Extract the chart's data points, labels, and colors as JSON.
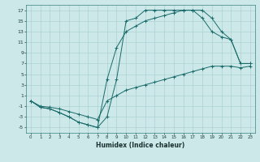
{
  "xlabel": "Humidex (Indice chaleur)",
  "bg_color": "#cce8e8",
  "line_color": "#1a6b6b",
  "xlim": [
    -0.5,
    23.5
  ],
  "ylim": [
    -6,
    18
  ],
  "xticks": [
    0,
    1,
    2,
    3,
    4,
    5,
    6,
    7,
    8,
    9,
    10,
    11,
    12,
    13,
    14,
    15,
    16,
    17,
    18,
    19,
    20,
    21,
    22,
    23
  ],
  "yticks": [
    -5,
    -3,
    -1,
    1,
    3,
    5,
    7,
    9,
    11,
    13,
    15,
    17
  ],
  "curve1_x": [
    0,
    1,
    2,
    3,
    4,
    5,
    6,
    7,
    8,
    9,
    10,
    11,
    12,
    13,
    14,
    15,
    16,
    17,
    18,
    19,
    20,
    21,
    22,
    23
  ],
  "curve1_y": [
    0,
    -1.2,
    -1.5,
    -2.2,
    -3.0,
    -4.0,
    -4.5,
    -5.0,
    -3.0,
    4.0,
    15.0,
    15.5,
    17.0,
    17.0,
    17.0,
    17.0,
    17.0,
    17.0,
    17.0,
    15.5,
    13.0,
    11.5,
    7.0,
    7.0
  ],
  "curve2_x": [
    0,
    1,
    2,
    3,
    4,
    5,
    6,
    7,
    8,
    9,
    10,
    11,
    12,
    13,
    14,
    15,
    16,
    17,
    18,
    19,
    20,
    21,
    22,
    23
  ],
  "curve2_y": [
    0,
    -1.2,
    -1.5,
    -2.2,
    -3.0,
    -4.0,
    -4.5,
    -5.0,
    4.0,
    10.0,
    13.0,
    14.0,
    15.0,
    15.5,
    16.0,
    16.5,
    17.0,
    17.0,
    15.5,
    13.0,
    12.0,
    11.5,
    7.0,
    7.0
  ],
  "curve3_x": [
    0,
    1,
    2,
    3,
    4,
    5,
    6,
    7,
    8,
    9,
    10,
    11,
    12,
    13,
    14,
    15,
    16,
    17,
    18,
    19,
    20,
    21,
    22,
    23
  ],
  "curve3_y": [
    0,
    -1.0,
    -1.2,
    -1.5,
    -2.0,
    -2.5,
    -3.0,
    -3.5,
    0.0,
    1.0,
    2.0,
    2.5,
    3.0,
    3.5,
    4.0,
    4.5,
    5.0,
    5.5,
    6.0,
    6.5,
    6.5,
    6.5,
    6.2,
    6.5
  ]
}
